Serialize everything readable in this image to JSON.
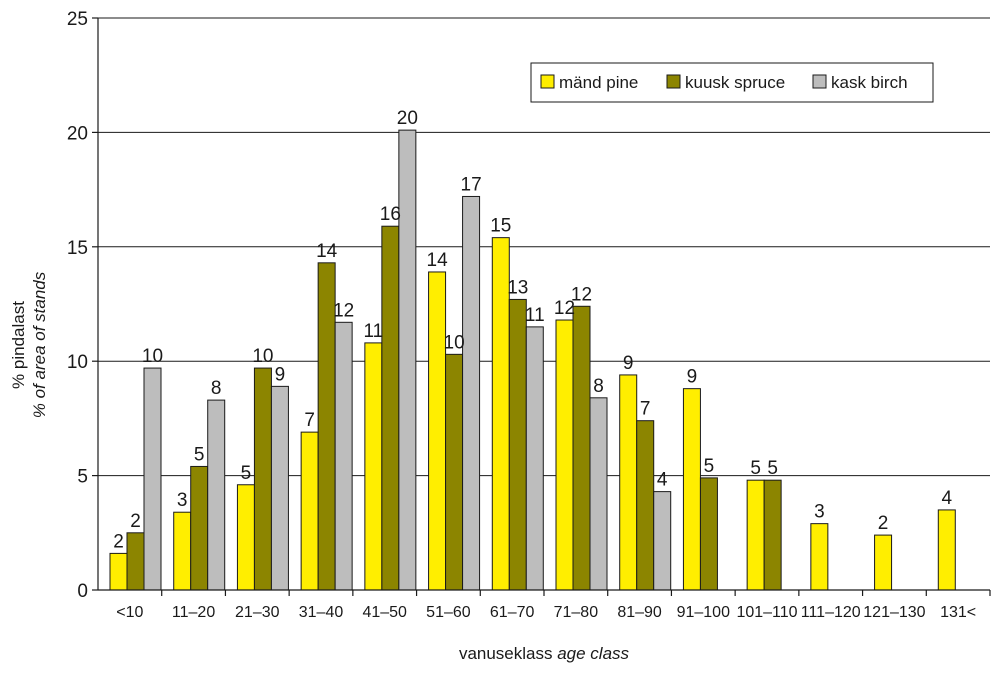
{
  "chart_data": {
    "type": "bar",
    "categories": [
      "<10",
      "11–20",
      "21–30",
      "31–40",
      "41–50",
      "51–60",
      "61–70",
      "71–80",
      "81–90",
      "91–100",
      "101–110",
      "111–120",
      "121–130",
      "131<"
    ],
    "series": [
      {
        "name": "mänd pine",
        "color": "#ffee00",
        "values": [
          1.6,
          3.4,
          4.6,
          6.9,
          10.8,
          13.9,
          15.4,
          11.8,
          9.4,
          8.8,
          4.8,
          2.9,
          2.4,
          3.5
        ],
        "labels": [
          "2",
          "3",
          "5",
          "7",
          "11",
          "14",
          "15",
          "12",
          "9",
          "9",
          "5",
          "3",
          "2",
          "4"
        ]
      },
      {
        "name": "kuusk spruce",
        "color": "#8c8500",
        "values": [
          2.5,
          5.4,
          9.7,
          14.3,
          15.9,
          10.3,
          12.7,
          12.4,
          7.4,
          4.9,
          4.8,
          null,
          null,
          null
        ],
        "labels": [
          "2",
          "5",
          "10",
          "14",
          "16",
          "10",
          "13",
          "12",
          "7",
          "5",
          "5",
          "",
          "",
          ""
        ]
      },
      {
        "name": "kask birch",
        "color": "#bdbdbd",
        "values": [
          9.7,
          8.3,
          8.9,
          11.7,
          20.1,
          17.2,
          11.5,
          8.4,
          4.3,
          null,
          null,
          null,
          null,
          null
        ],
        "labels": [
          "10",
          "8",
          "9",
          "12",
          "20",
          "17",
          "11",
          "8",
          "4",
          "",
          "",
          "",
          "",
          ""
        ]
      }
    ],
    "y_ticks": [
      "0",
      "5",
      "10",
      "15",
      "20",
      "25"
    ],
    "ylim": [
      0,
      25
    ],
    "ylabel_line1": "% pindalast",
    "ylabel_line2": "% of area of stands",
    "xlabel_plain": "vanuseklass ",
    "xlabel_italic": "age class",
    "grid": true,
    "legend_position": "top-right"
  }
}
